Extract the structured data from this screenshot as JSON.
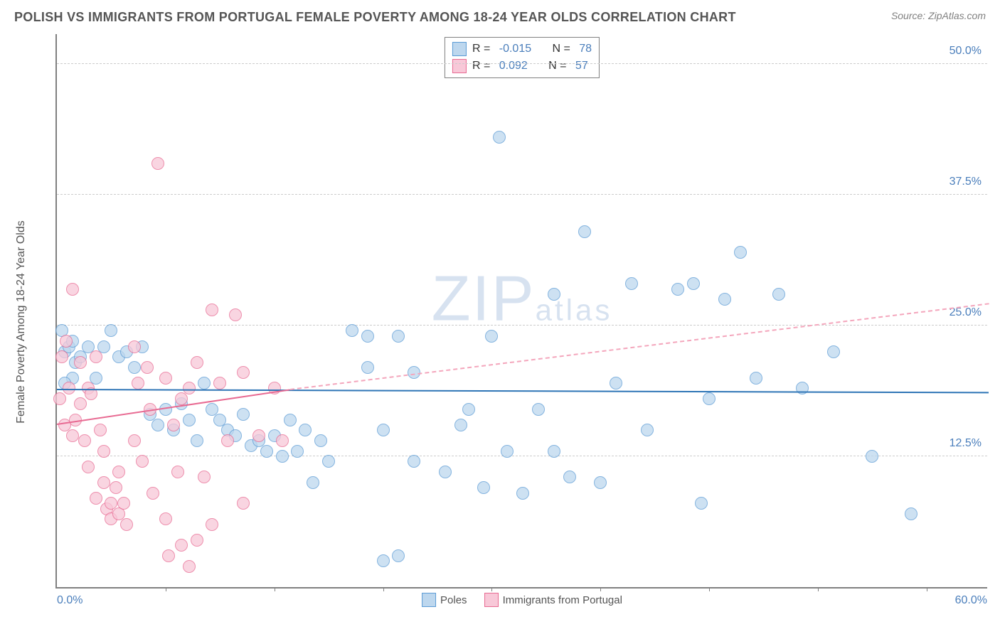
{
  "header": {
    "title": "POLISH VS IMMIGRANTS FROM PORTUGAL FEMALE POVERTY AMONG 18-24 YEAR OLDS CORRELATION CHART",
    "source": "Source: ZipAtlas.com"
  },
  "chart": {
    "type": "scatter",
    "yaxis_title": "Female Poverty Among 18-24 Year Olds",
    "xlim": [
      0,
      60
    ],
    "ylim": [
      0,
      53
    ],
    "xaxis": {
      "min_label": "0.0%",
      "max_label": "60.0%"
    },
    "yticks": [
      {
        "v": 12.5,
        "label": "12.5%"
      },
      {
        "v": 25.0,
        "label": "25.0%"
      },
      {
        "v": 37.5,
        "label": "37.5%"
      },
      {
        "v": 50.0,
        "label": "50.0%"
      }
    ],
    "xticks": [
      7,
      14,
      21,
      28,
      35,
      42,
      49,
      56
    ],
    "grid_color": "#cccccc",
    "axis_color": "#808080",
    "background_color": "#ffffff",
    "watermark": {
      "main": "ZIP",
      "sub": "atlas"
    },
    "series": [
      {
        "key": "poles",
        "label": "Poles",
        "fill": "#bdd7ee",
        "stroke": "#5b9bd5",
        "r_stat": "-0.015",
        "n_stat": "78",
        "trend": {
          "x1": 0,
          "y1": 18.8,
          "x2": 60,
          "y2": 18.5,
          "color": "#2e75b6"
        },
        "marker_r": 9,
        "points": [
          [
            0.5,
            22.5
          ],
          [
            0.8,
            23.0
          ],
          [
            1.0,
            23.5
          ],
          [
            1.2,
            21.5
          ],
          [
            1.5,
            22.0
          ],
          [
            1.0,
            20.0
          ],
          [
            0.3,
            24.5
          ],
          [
            0.5,
            19.5
          ],
          [
            2.0,
            23.0
          ],
          [
            2.5,
            20.0
          ],
          [
            3.0,
            23.0
          ],
          [
            3.5,
            24.5
          ],
          [
            4.0,
            22.0
          ],
          [
            4.5,
            22.5
          ],
          [
            5.0,
            21.0
          ],
          [
            5.5,
            23.0
          ],
          [
            6.0,
            16.5
          ],
          [
            6.5,
            15.5
          ],
          [
            7.0,
            17.0
          ],
          [
            7.5,
            15.0
          ],
          [
            8.0,
            17.5
          ],
          [
            8.5,
            16.0
          ],
          [
            9.0,
            14.0
          ],
          [
            9.5,
            19.5
          ],
          [
            10.0,
            17.0
          ],
          [
            10.5,
            16.0
          ],
          [
            11.0,
            15.0
          ],
          [
            11.5,
            14.5
          ],
          [
            12.0,
            16.5
          ],
          [
            12.5,
            13.5
          ],
          [
            13.0,
            14.0
          ],
          [
            13.5,
            13.0
          ],
          [
            14.0,
            14.5
          ],
          [
            14.5,
            12.5
          ],
          [
            15.0,
            16.0
          ],
          [
            15.5,
            13.0
          ],
          [
            16.0,
            15.0
          ],
          [
            16.5,
            10.0
          ],
          [
            17.0,
            14.0
          ],
          [
            17.5,
            12.0
          ],
          [
            20.0,
            24.0
          ],
          [
            20.0,
            21.0
          ],
          [
            21.0,
            15.0
          ],
          [
            22.0,
            24.0
          ],
          [
            23.0,
            20.5
          ],
          [
            23.0,
            12.0
          ],
          [
            25.0,
            11.0
          ],
          [
            26.0,
            15.5
          ],
          [
            26.5,
            17.0
          ],
          [
            27.5,
            9.5
          ],
          [
            28.0,
            24.0
          ],
          [
            28.5,
            43.0
          ],
          [
            29.0,
            13.0
          ],
          [
            30.0,
            9.0
          ],
          [
            31.0,
            17.0
          ],
          [
            32.0,
            28.0
          ],
          [
            32.0,
            13.0
          ],
          [
            33.0,
            10.5
          ],
          [
            34.0,
            34.0
          ],
          [
            35.0,
            10.0
          ],
          [
            36.0,
            19.5
          ],
          [
            37.0,
            29.0
          ],
          [
            38.0,
            15.0
          ],
          [
            40.0,
            28.5
          ],
          [
            41.0,
            29.0
          ],
          [
            41.5,
            8.0
          ],
          [
            42.0,
            18.0
          ],
          [
            43.0,
            27.5
          ],
          [
            44.0,
            32.0
          ],
          [
            45.0,
            20.0
          ],
          [
            46.5,
            28.0
          ],
          [
            48.0,
            19.0
          ],
          [
            50.0,
            22.5
          ],
          [
            52.5,
            12.5
          ],
          [
            55.0,
            7.0
          ],
          [
            22.0,
            3.0
          ],
          [
            19.0,
            24.5
          ],
          [
            21.0,
            2.5
          ]
        ]
      },
      {
        "key": "portugal",
        "label": "Immigrants from Portugal",
        "fill": "#f8c8d8",
        "stroke": "#e86a92",
        "r_stat": "0.092",
        "n_stat": "57",
        "trend_solid": {
          "x1": 0,
          "y1": 15.5,
          "x2": 15,
          "y2": 18.8,
          "color": "#e86a92"
        },
        "trend_dash": {
          "x1": 15,
          "y1": 18.8,
          "x2": 60,
          "y2": 27.0,
          "color": "#f4a6bc"
        },
        "marker_r": 9,
        "points": [
          [
            0.2,
            18.0
          ],
          [
            0.3,
            22.0
          ],
          [
            0.5,
            15.5
          ],
          [
            0.6,
            23.5
          ],
          [
            0.8,
            19.0
          ],
          [
            1.0,
            14.5
          ],
          [
            1.0,
            28.5
          ],
          [
            1.2,
            16.0
          ],
          [
            1.5,
            17.5
          ],
          [
            1.5,
            21.5
          ],
          [
            1.8,
            14.0
          ],
          [
            2.0,
            19.0
          ],
          [
            2.0,
            11.5
          ],
          [
            2.2,
            18.5
          ],
          [
            2.5,
            22.0
          ],
          [
            2.5,
            8.5
          ],
          [
            2.8,
            15.0
          ],
          [
            3.0,
            13.0
          ],
          [
            3.0,
            10.0
          ],
          [
            3.2,
            7.5
          ],
          [
            3.5,
            8.0
          ],
          [
            3.5,
            6.5
          ],
          [
            3.8,
            9.5
          ],
          [
            4.0,
            11.0
          ],
          [
            4.0,
            7.0
          ],
          [
            4.3,
            8.0
          ],
          [
            4.5,
            6.0
          ],
          [
            5.0,
            23.0
          ],
          [
            5.0,
            14.0
          ],
          [
            5.2,
            19.5
          ],
          [
            5.5,
            12.0
          ],
          [
            5.8,
            21.0
          ],
          [
            6.0,
            17.0
          ],
          [
            6.2,
            9.0
          ],
          [
            6.5,
            40.5
          ],
          [
            7.0,
            20.0
          ],
          [
            7.0,
            6.5
          ],
          [
            7.2,
            3.0
          ],
          [
            7.5,
            15.5
          ],
          [
            7.8,
            11.0
          ],
          [
            8.0,
            18.0
          ],
          [
            8.0,
            4.0
          ],
          [
            8.5,
            19.0
          ],
          [
            8.5,
            2.0
          ],
          [
            9.0,
            21.5
          ],
          [
            9.5,
            10.5
          ],
          [
            10.0,
            26.5
          ],
          [
            10.0,
            6.0
          ],
          [
            10.5,
            19.5
          ],
          [
            11.0,
            14.0
          ],
          [
            11.5,
            26.0
          ],
          [
            12.0,
            20.5
          ],
          [
            12.0,
            8.0
          ],
          [
            13.0,
            14.5
          ],
          [
            14.0,
            19.0
          ],
          [
            14.5,
            14.0
          ],
          [
            9.0,
            4.5
          ]
        ]
      }
    ],
    "stats_box": {
      "r_label": "R =",
      "n_label": "N ="
    },
    "legend_labels": {
      "poles": "Poles",
      "portugal": "Immigrants from Portugal"
    }
  }
}
